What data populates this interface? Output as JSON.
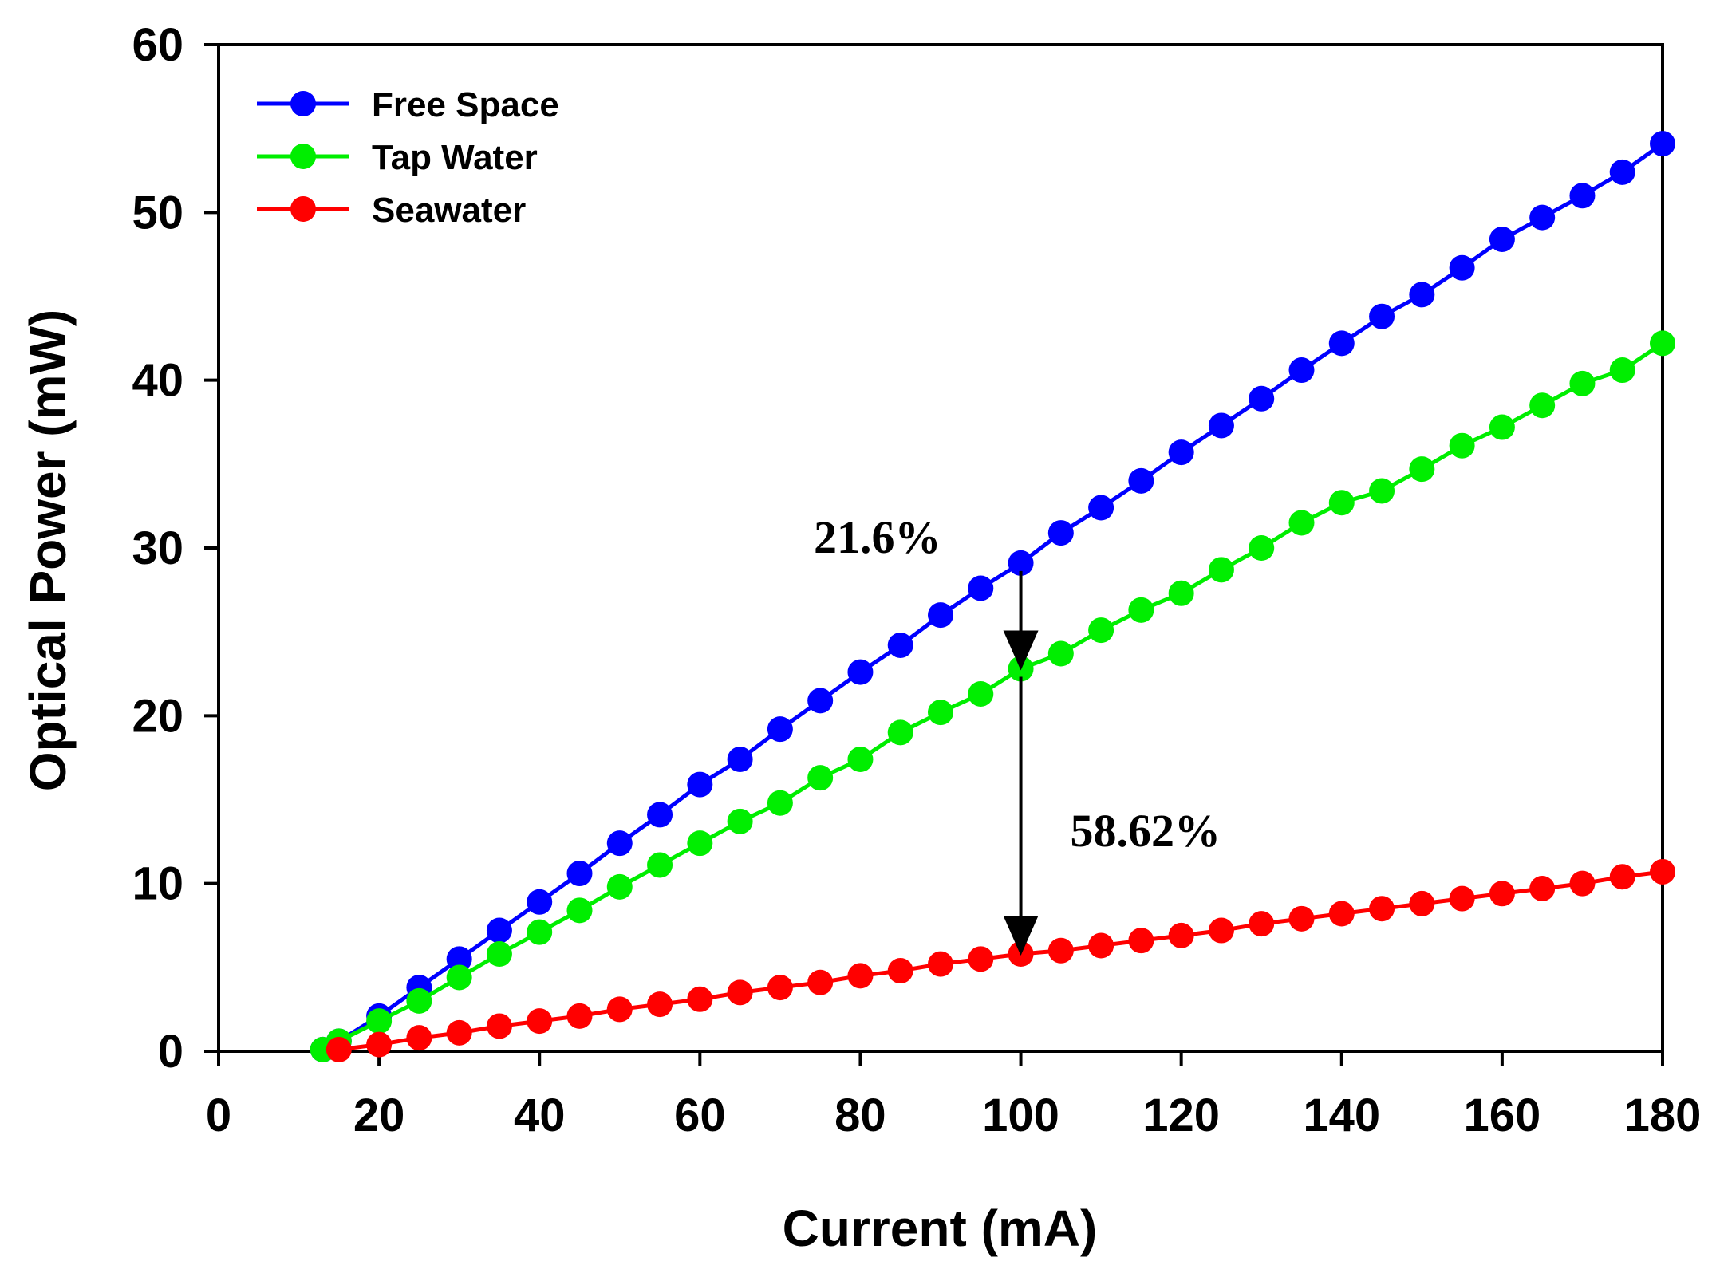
{
  "chart_data": {
    "type": "line",
    "title": "",
    "xlabel": "Current (mA)",
    "ylabel": "Optical Power (mW)",
    "xlim": [
      0,
      180
    ],
    "ylim": [
      0,
      60
    ],
    "x_ticks": [
      0,
      20,
      40,
      60,
      80,
      100,
      120,
      140,
      160,
      180
    ],
    "y_ticks": [
      0,
      10,
      20,
      30,
      40,
      50,
      60
    ],
    "grid": false,
    "legend_position": "top-left",
    "series": [
      {
        "name": "Free Space",
        "color": "#0000ff",
        "x": [
          13,
          15,
          20,
          25,
          30,
          35,
          40,
          45,
          50,
          55,
          60,
          65,
          70,
          75,
          80,
          85,
          90,
          95,
          100,
          105,
          110,
          115,
          120,
          125,
          130,
          135,
          140,
          145,
          150,
          155,
          160,
          165,
          170,
          175,
          180
        ],
        "values": [
          0.1,
          0.6,
          2.1,
          3.8,
          5.5,
          7.2,
          8.9,
          10.6,
          12.4,
          14.1,
          15.9,
          17.4,
          19.2,
          20.9,
          22.6,
          24.2,
          26.0,
          27.6,
          29.1,
          30.9,
          32.4,
          34.0,
          35.7,
          37.3,
          38.9,
          40.6,
          42.2,
          43.8,
          45.1,
          46.7,
          48.4,
          49.7,
          51.0,
          52.4,
          54.1
        ]
      },
      {
        "name": "Tap Water",
        "color": "#00ee00",
        "x": [
          13,
          15,
          20,
          25,
          30,
          35,
          40,
          45,
          50,
          55,
          60,
          65,
          70,
          75,
          80,
          85,
          90,
          95,
          100,
          105,
          110,
          115,
          120,
          125,
          130,
          135,
          140,
          145,
          150,
          155,
          160,
          165,
          170,
          175,
          180
        ],
        "values": [
          0.1,
          0.6,
          1.8,
          3.0,
          4.4,
          5.8,
          7.1,
          8.4,
          9.8,
          11.1,
          12.4,
          13.7,
          14.8,
          16.3,
          17.4,
          19.0,
          20.2,
          21.3,
          22.8,
          23.7,
          25.1,
          26.3,
          27.3,
          28.7,
          30.0,
          31.5,
          32.7,
          33.4,
          34.7,
          36.1,
          37.2,
          38.5,
          39.8,
          40.6,
          42.2
        ]
      },
      {
        "name": "Seawater",
        "color": "#ff0000",
        "x": [
          15,
          20,
          25,
          30,
          35,
          40,
          45,
          50,
          55,
          60,
          65,
          70,
          75,
          80,
          85,
          90,
          95,
          100,
          105,
          110,
          115,
          120,
          125,
          130,
          135,
          140,
          145,
          150,
          155,
          160,
          165,
          170,
          175,
          180
        ],
        "values": [
          0.1,
          0.4,
          0.8,
          1.1,
          1.5,
          1.8,
          2.1,
          2.5,
          2.8,
          3.1,
          3.5,
          3.8,
          4.1,
          4.5,
          4.8,
          5.2,
          5.5,
          5.8,
          6.0,
          6.3,
          6.6,
          6.9,
          7.2,
          7.6,
          7.9,
          8.2,
          8.5,
          8.8,
          9.1,
          9.4,
          9.7,
          10.0,
          10.4,
          10.7
        ]
      }
    ],
    "annotations": [
      {
        "text": "21.6%",
        "x": 100,
        "y_from": 29.1,
        "y_to": 22.8
      },
      {
        "text": "58.62%",
        "x": 100,
        "y_from": 22.8,
        "y_to": 5.8
      }
    ]
  }
}
